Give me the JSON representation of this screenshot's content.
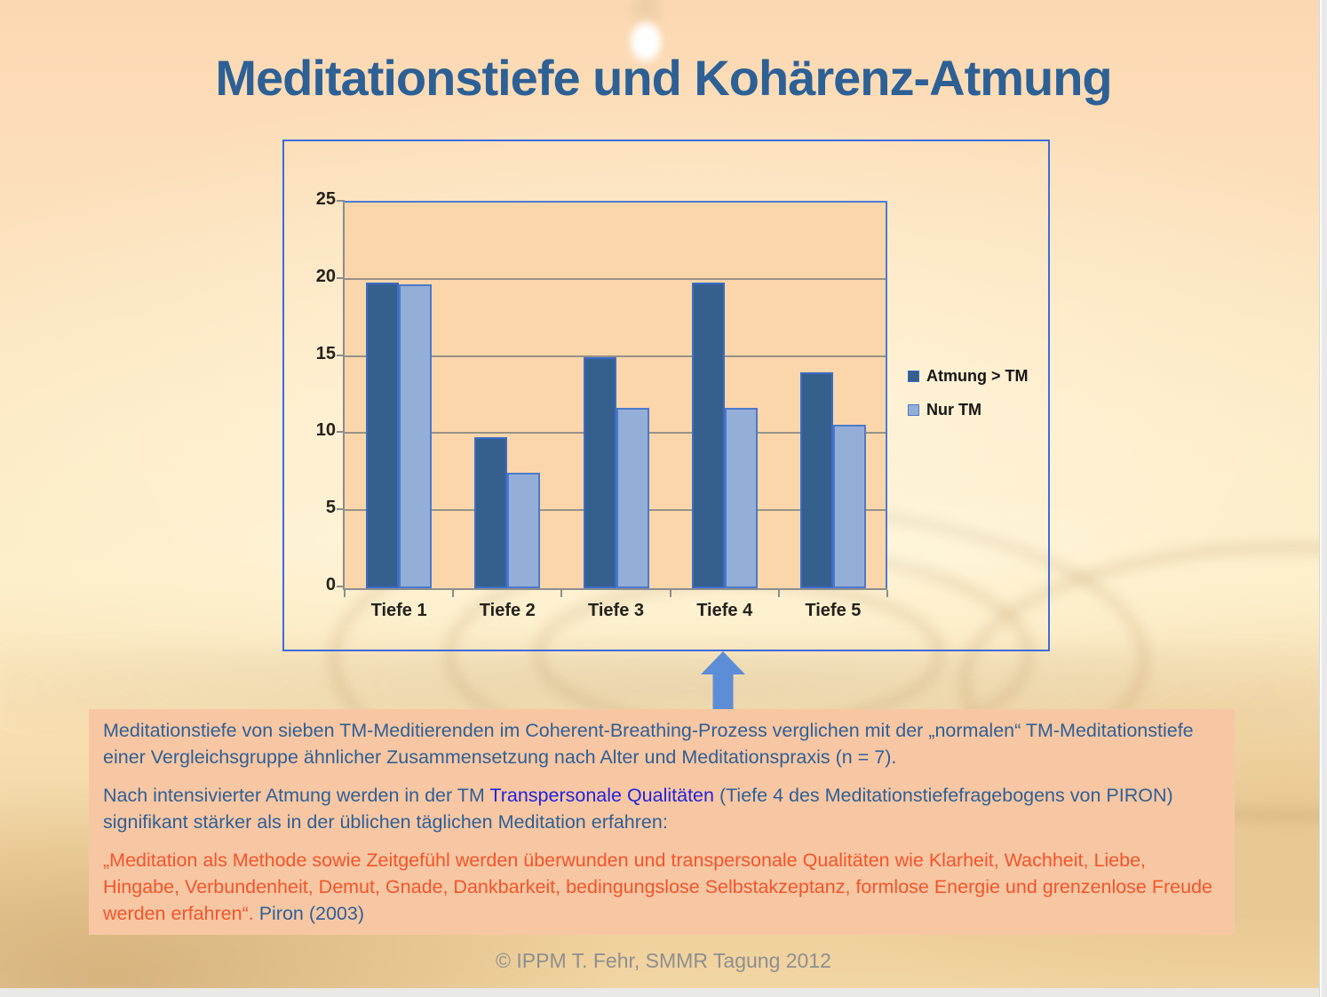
{
  "title": "Meditationstiefe und Kohärenz-Atmung",
  "chart_data": {
    "type": "bar",
    "categories": [
      "Tiefe 1",
      "Tiefe 2",
      "Tiefe 3",
      "Tiefe 4",
      "Tiefe 5"
    ],
    "series": [
      {
        "name": "Atmung > TM",
        "color": "#35608e",
        "border": "#3c6cc4",
        "values": [
          19.8,
          9.8,
          15.0,
          19.8,
          14.0
        ]
      },
      {
        "name": "Nur TM",
        "color": "#93afd7",
        "border": "#4d79c9",
        "values": [
          19.7,
          7.5,
          11.7,
          11.7,
          10.6
        ]
      }
    ],
    "title": "",
    "xlabel": "",
    "ylabel": "",
    "ylim": [
      0,
      25
    ],
    "yticks": [
      0,
      5,
      10,
      15,
      20,
      25
    ],
    "grid": true,
    "legend_position": "right"
  },
  "annotation": {
    "p1": "Meditationstiefe von sieben TM-Meditierenden im Coherent-Breathing-Prozess verglichen mit der „normalen“ TM-Meditationstiefe einer Vergleichsgruppe ähnlicher Zusammensetzung nach Alter und Meditationspraxis (n = 7).",
    "p2_before": "Nach intensivierter Atmung werden in der TM ",
    "p2_link": "Transpersonale Qualitäten",
    "p2_after": " (Tiefe 4 des Meditationstiefefragebogens von PIRON) signifikant stärker als in der üblichen täglichen Meditation erfahren:",
    "p3_quote": "„Meditation als Methode sowie Zeitgefühl werden überwunden und transpersonale Qualitäten wie Klarheit, Wachheit, Liebe, Hingabe, Verbundenheit, Demut, Gnade, Dankbarkeit, bedingungslose Selbstakzeptanz, formlose Energie und grenzenlose Freude werden erfahren“. ",
    "p3_cite": "Piron (2003)"
  },
  "footer": "© IPPM T. Fehr, SMMR Tagung 2012",
  "colors": {
    "title_blue": "#2d6095",
    "body_blue": "#2f5f96",
    "link_blue": "#2222dd",
    "quote_orange": "#f4542a",
    "series1_fill": "#35608e",
    "series2_fill": "#93afd7",
    "bar_border_blue": "#4472c4",
    "chart_frame_blue": "#3e6cdb",
    "plot_background": "#fbd6aa",
    "axis_gray": "#8d8d8d",
    "textbox_salmon": "#f7c7a3",
    "arrow_blue": "#5d8dd6",
    "footer_gray": "#8f8f8f"
  }
}
